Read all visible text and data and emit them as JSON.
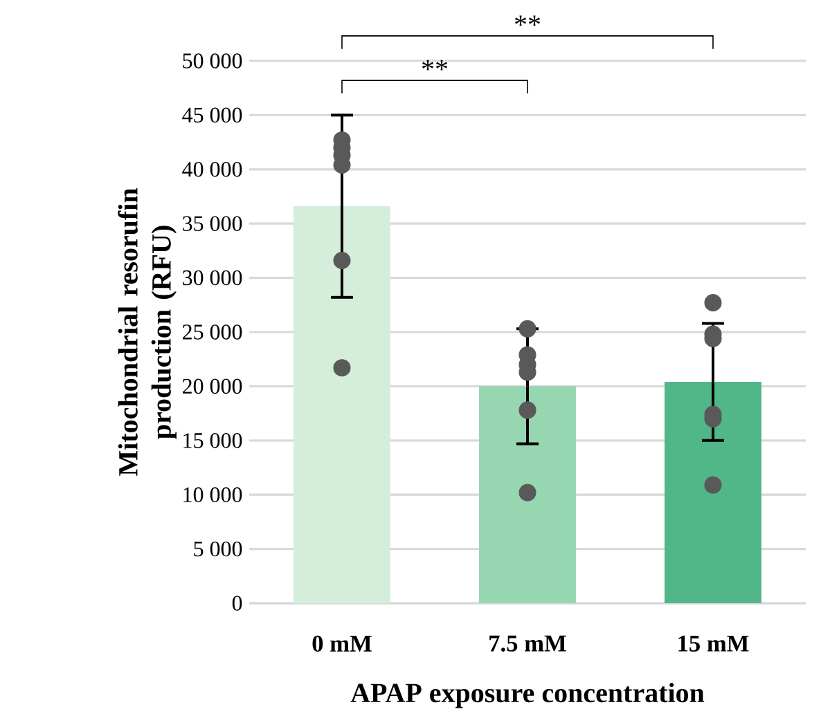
{
  "chart_data": {
    "type": "bar",
    "xlabel": "APAP exposure concentration",
    "ylabel": "Mitochondrial resorufin production  (RFU)",
    "categories": [
      "0 mM",
      "7.5 mM",
      "15 mM"
    ],
    "values": [
      36600,
      20000,
      20400
    ],
    "colors": [
      "#d5eedb",
      "#96d7b2",
      "#52b788"
    ],
    "errors": [
      8400,
      5300,
      5400
    ],
    "series": [
      {
        "type": "scatter",
        "color": "#595959",
        "x": [
          "0 mM",
          "0 mM",
          "0 mM",
          "0 mM",
          "0 mM",
          "0 mM",
          "7.5 mM",
          "7.5 mM",
          "7.5 mM",
          "7.5 mM",
          "7.5 mM",
          "7.5 mM",
          "15 mM",
          "15 mM",
          "15 mM",
          "15 mM",
          "15 mM",
          "15 mM"
        ],
        "values": [
          42700,
          42000,
          41300,
          40400,
          31600,
          21700,
          25300,
          22900,
          22000,
          21300,
          17800,
          10200,
          27700,
          24800,
          24400,
          17400,
          17000,
          10900
        ]
      }
    ],
    "ylim": [
      0,
      50000
    ],
    "yticks": [
      0,
      {
        "value": 5000,
        "label": "5 000"
      },
      {
        "value": 10000,
        "label": "10 000"
      },
      {
        "value": 15000,
        "label": "15 000"
      },
      {
        "value": 20000,
        "label": "20 000"
      },
      {
        "value": 25000,
        "label": "25 000"
      },
      {
        "value": 30000,
        "label": "30 000"
      },
      {
        "value": 35000,
        "label": "35 000"
      },
      {
        "value": 40000,
        "label": "40 000"
      },
      {
        "value": 45000,
        "label": "45 000"
      },
      {
        "value": 50000,
        "label": "50 000"
      }
    ],
    "grid": "y",
    "annotations": [
      "**",
      "**"
    ]
  }
}
